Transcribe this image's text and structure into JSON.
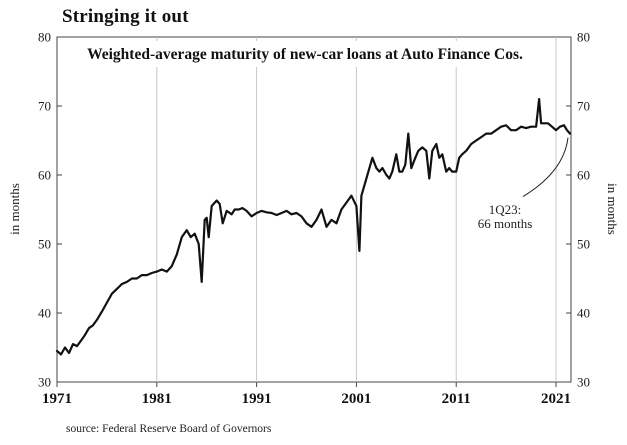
{
  "headline": "Stringing it out",
  "source": "source: Federal Reserve Board of Governors",
  "colors": {
    "line": "#111111",
    "grid": "#c8c8c8",
    "frame": "#444444"
  },
  "chart_data": {
    "type": "line",
    "title": "Weighted-average maturity of new-car loans at Auto Finance Cos.",
    "ylabel": "in months",
    "ylabel_right": "in months",
    "xlim": [
      1971,
      2022.5
    ],
    "ylim": [
      30,
      80
    ],
    "y_ticks": [
      30,
      40,
      50,
      60,
      70,
      80
    ],
    "x_ticks": [
      1971,
      1981,
      1991,
      2001,
      2011,
      2021
    ],
    "x_tick_labels": [
      "1971",
      "1981",
      "1991",
      "2001",
      "2011",
      "2021"
    ],
    "grid": "vertical",
    "annotation": {
      "lines": [
        "1Q23:",
        "66 months"
      ],
      "x": 2022.4,
      "y": 66
    },
    "series": [
      {
        "x": [
          1971.0,
          1971.4,
          1971.8,
          1972.2,
          1972.6,
          1973.0,
          1973.4,
          1973.8,
          1974.2,
          1974.6,
          1975.0,
          1975.5,
          1976.0,
          1976.5,
          1977.0,
          1977.5,
          1978.0,
          1978.5,
          1979.0,
          1979.5,
          1980.0,
          1980.5,
          1981.0,
          1981.5,
          1982.0,
          1982.5,
          1983.0,
          1983.5,
          1984.0,
          1984.4,
          1984.8,
          1985.2,
          1985.5,
          1985.8,
          1986.0,
          1986.2,
          1986.5,
          1986.8,
          1987.0,
          1987.3,
          1987.6,
          1988.0,
          1988.5,
          1988.8,
          1989.2,
          1989.6,
          1990.0,
          1990.5,
          1991.0,
          1991.5,
          1992.0,
          1992.5,
          1993.0,
          1993.5,
          1994.0,
          1994.5,
          1995.0,
          1995.5,
          1996.0,
          1996.5,
          1997.0,
          1997.5,
          1998.0,
          1998.5,
          1999.0,
          1999.5,
          2000.0,
          2000.5,
          2001.0,
          2001.3,
          2001.5,
          2001.8,
          2002.2,
          2002.6,
          2003.0,
          2003.3,
          2003.6,
          2004.0,
          2004.3,
          2004.6,
          2005.0,
          2005.3,
          2005.6,
          2005.9,
          2006.2,
          2006.5,
          2006.9,
          2007.2,
          2007.6,
          2008.0,
          2008.3,
          2008.6,
          2009.0,
          2009.3,
          2009.6,
          2010.0,
          2010.3,
          2010.6,
          2011.0,
          2011.3,
          2011.6,
          2012.0,
          2012.5,
          2013.0,
          2013.5,
          2014.0,
          2014.5,
          2015.0,
          2015.5,
          2016.0,
          2016.5,
          2017.0,
          2017.5,
          2018.0,
          2018.5,
          2019.0,
          2019.3,
          2019.5,
          2019.8,
          2020.2,
          2020.6,
          2021.0,
          2021.4,
          2021.8,
          2022.1,
          2022.4
        ],
        "y": [
          34.5,
          34.0,
          35.0,
          34.2,
          35.5,
          35.2,
          36.0,
          36.8,
          37.8,
          38.2,
          39.0,
          40.2,
          41.5,
          42.8,
          43.5,
          44.2,
          44.5,
          45.0,
          45.0,
          45.5,
          45.5,
          45.8,
          46.0,
          46.3,
          46.0,
          46.8,
          48.5,
          51.0,
          52.0,
          51.0,
          51.5,
          50.0,
          44.5,
          53.5,
          53.8,
          51.0,
          55.5,
          56.0,
          56.3,
          55.8,
          53.0,
          54.8,
          54.3,
          55.0,
          55.0,
          55.2,
          54.8,
          54.0,
          54.5,
          54.8,
          54.6,
          54.5,
          54.2,
          54.5,
          54.8,
          54.3,
          54.5,
          54.0,
          53.0,
          52.5,
          53.5,
          55.0,
          52.5,
          53.5,
          53.0,
          55.0,
          56.0,
          57.0,
          55.5,
          49.0,
          57.0,
          58.5,
          60.5,
          62.5,
          61.0,
          60.5,
          61.0,
          60.0,
          59.5,
          60.5,
          63.0,
          60.5,
          60.5,
          61.5,
          66.0,
          61.0,
          62.5,
          63.5,
          64.0,
          63.5,
          59.5,
          63.5,
          64.5,
          62.5,
          63.0,
          60.5,
          61.0,
          60.5,
          60.5,
          62.5,
          63.0,
          63.5,
          64.5,
          65.0,
          65.5,
          66.0,
          66.0,
          66.5,
          67.0,
          67.2,
          66.5,
          66.5,
          67.0,
          66.8,
          67.0,
          67.0,
          71.0,
          67.5,
          67.5,
          67.5,
          67.0,
          66.5,
          67.0,
          67.2,
          66.5,
          66.0
        ]
      }
    ]
  }
}
